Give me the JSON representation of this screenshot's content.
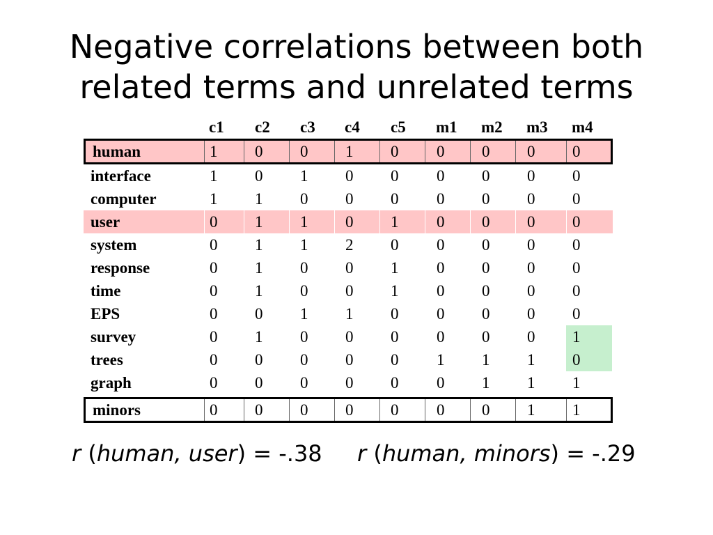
{
  "title": {
    "line1": "Negative correlations between both",
    "line2": "related terms and unrelated terms"
  },
  "matrix": {
    "columns": [
      "c1",
      "c2",
      "c3",
      "c4",
      "c5",
      "m1",
      "m2",
      "m3",
      "m4"
    ],
    "rows": [
      {
        "term": "human",
        "values": [
          "1",
          "0",
          "0",
          "1",
          "0",
          "0",
          "0",
          "0",
          "0"
        ]
      },
      {
        "term": "interface",
        "values": [
          "1",
          "0",
          "1",
          "0",
          "0",
          "0",
          "0",
          "0",
          "0"
        ]
      },
      {
        "term": "computer",
        "values": [
          "1",
          "1",
          "0",
          "0",
          "0",
          "0",
          "0",
          "0",
          "0"
        ]
      },
      {
        "term": "user",
        "values": [
          "0",
          "1",
          "1",
          "0",
          "1",
          "0",
          "0",
          "0",
          "0"
        ]
      },
      {
        "term": "system",
        "values": [
          "0",
          "1",
          "1",
          "2",
          "0",
          "0",
          "0",
          "0",
          "0"
        ]
      },
      {
        "term": "response",
        "values": [
          "0",
          "1",
          "0",
          "0",
          "1",
          "0",
          "0",
          "0",
          "0"
        ]
      },
      {
        "term": "time",
        "values": [
          "0",
          "1",
          "0",
          "0",
          "1",
          "0",
          "0",
          "0",
          "0"
        ]
      },
      {
        "term": "EPS",
        "values": [
          "0",
          "0",
          "1",
          "1",
          "0",
          "0",
          "0",
          "0",
          "0"
        ]
      },
      {
        "term": "survey",
        "values": [
          "0",
          "1",
          "0",
          "0",
          "0",
          "0",
          "0",
          "0",
          "1"
        ]
      },
      {
        "term": "trees",
        "values": [
          "0",
          "0",
          "0",
          "0",
          "0",
          "1",
          "1",
          "1",
          "0"
        ]
      },
      {
        "term": "graph",
        "values": [
          "0",
          "0",
          "0",
          "0",
          "0",
          "0",
          "1",
          "1",
          "1"
        ]
      },
      {
        "term": "minors",
        "values": [
          "0",
          "0",
          "0",
          "0",
          "0",
          "0",
          "0",
          "1",
          "1"
        ]
      }
    ],
    "highlight_colors": {
      "pink": "#ffc6c7",
      "green": "#c6efce"
    }
  },
  "formulas": [
    {
      "r": "r",
      "open": " (",
      "pair": "human, user",
      "close": ") = -.38"
    },
    {
      "r": "r",
      "open": " (",
      "pair": "human, minors",
      "close": ") = -.29"
    }
  ]
}
